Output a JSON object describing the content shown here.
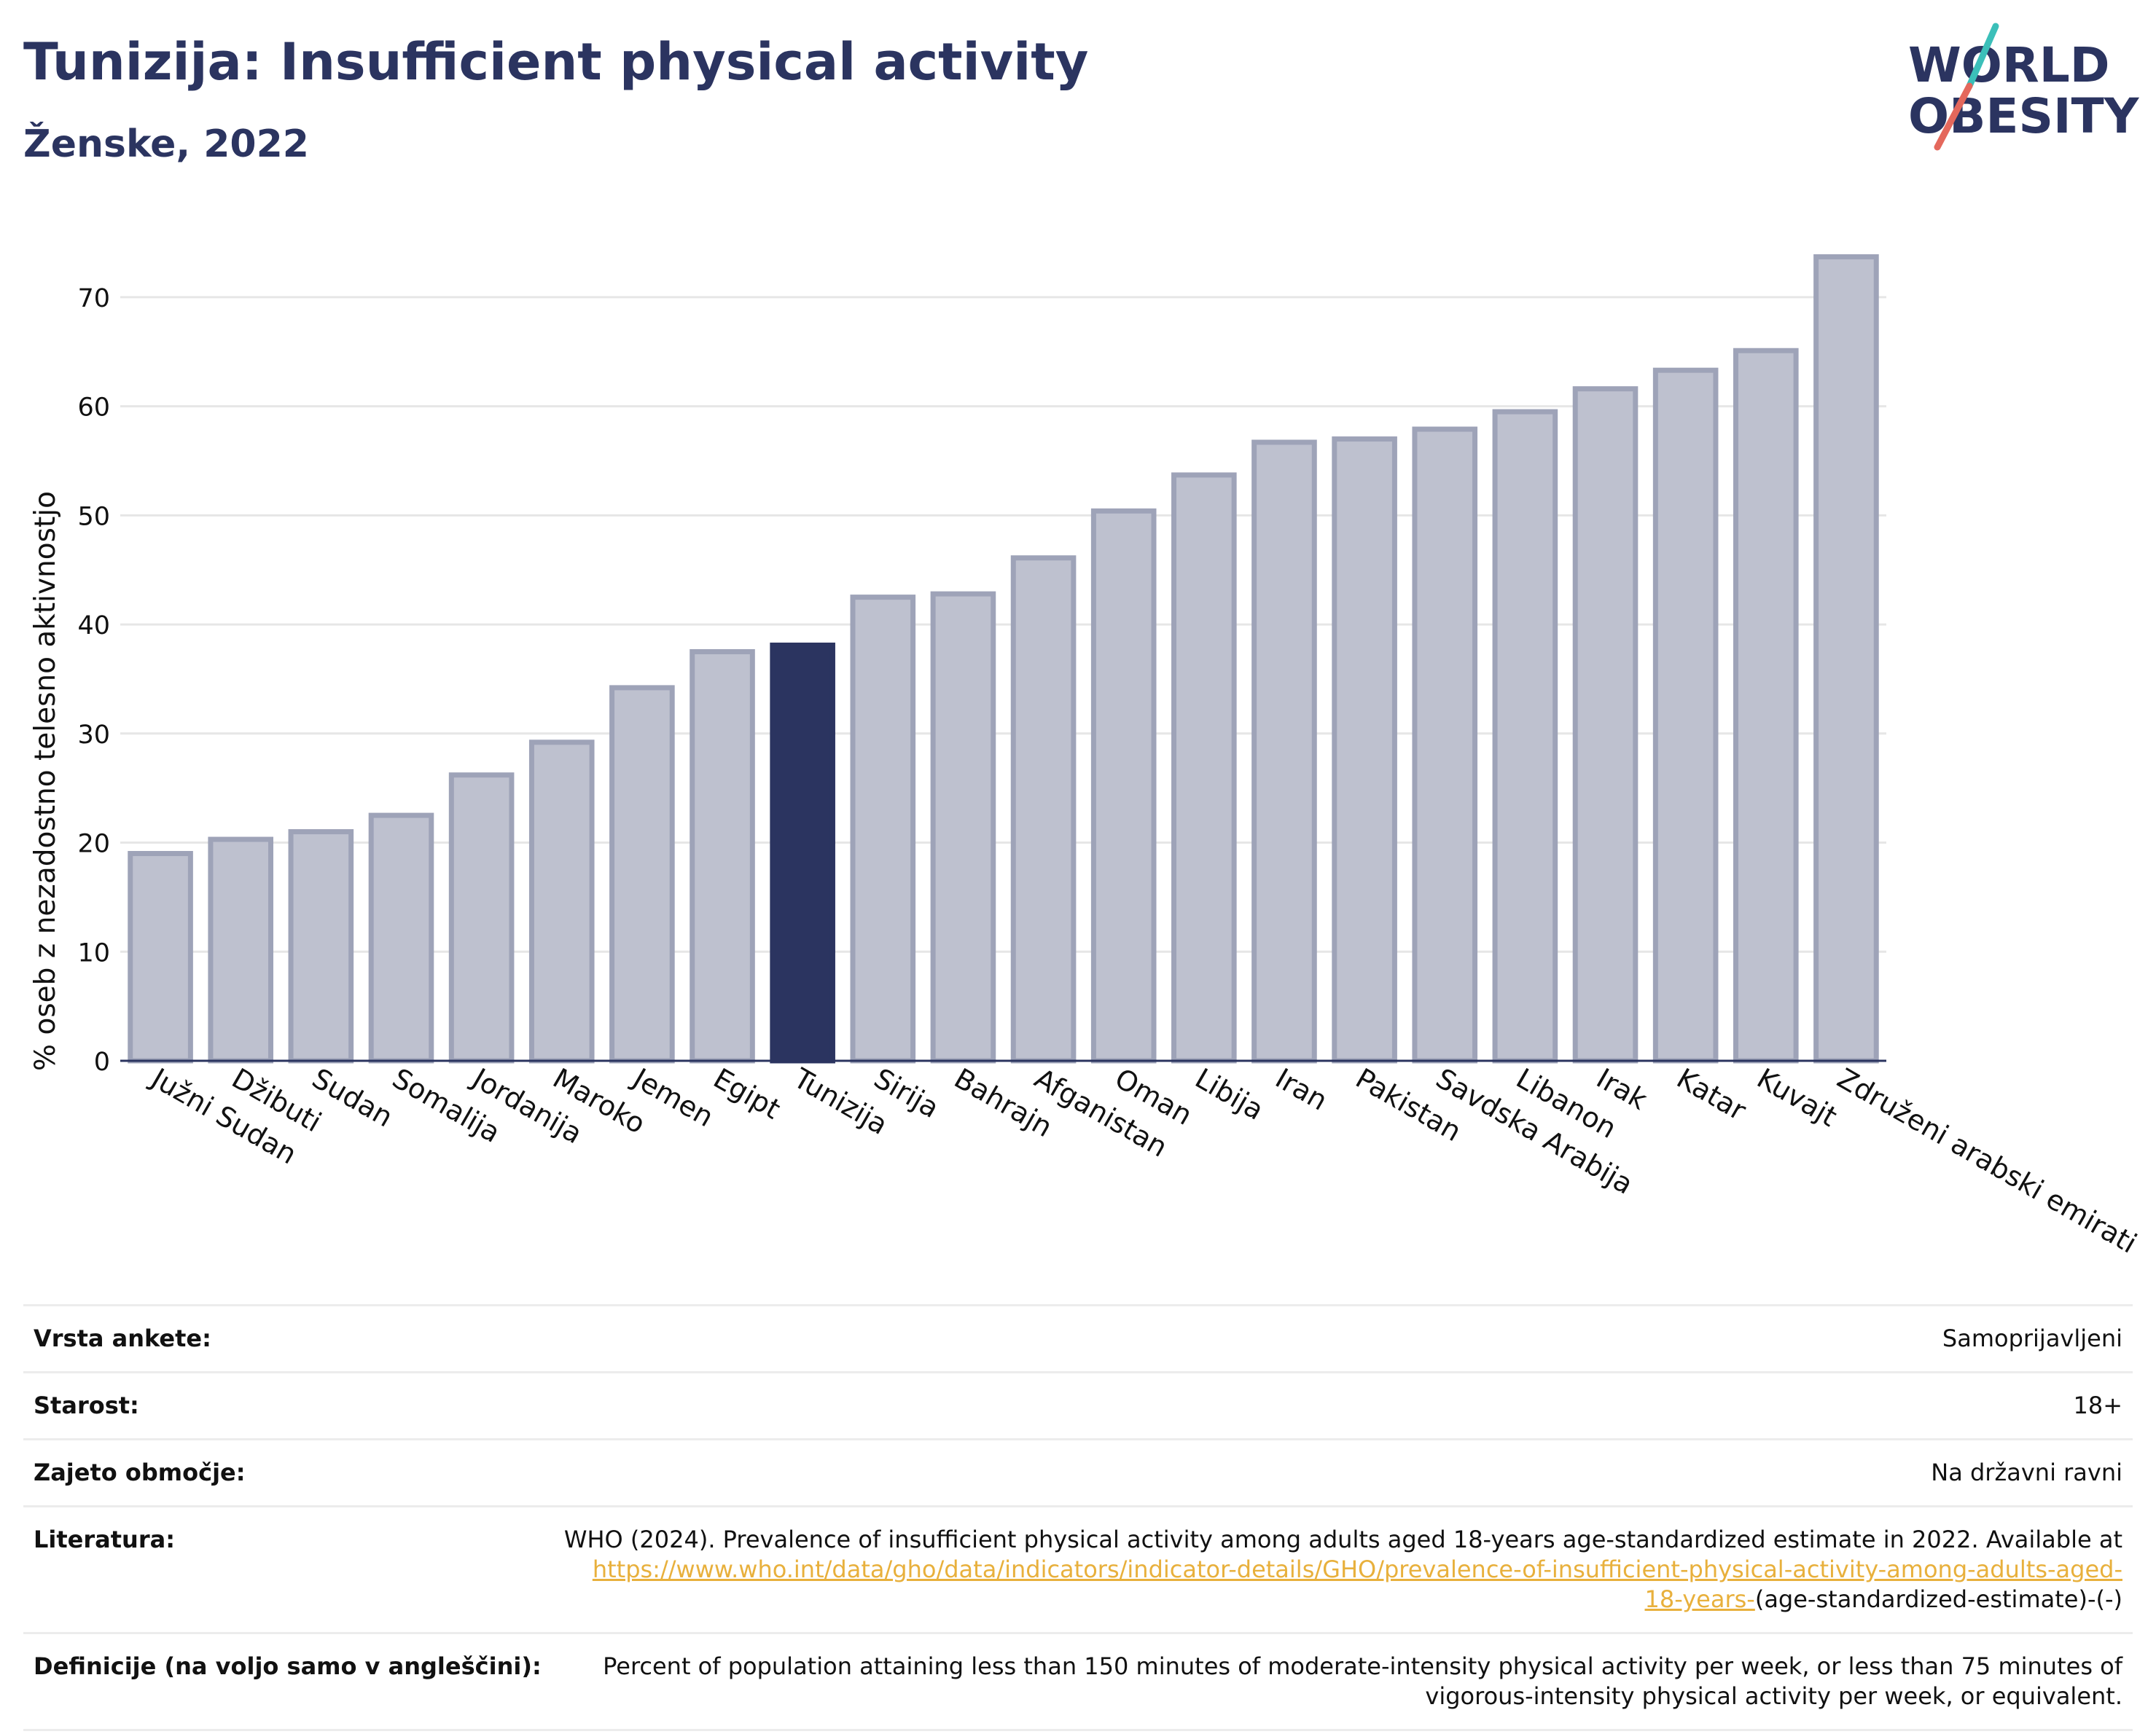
{
  "header": {
    "title": "Tunizija: Insufficient physical activity",
    "subtitle": "Ženske, 2022"
  },
  "logo": {
    "line1": "WORLD",
    "line2": "OBESITY"
  },
  "colors": {
    "bar": "#bec1cf",
    "bar_stroke": "#9ea3b8",
    "highlight": "#2b3460",
    "axis": "#2b3460",
    "grid": "#e6e6e6"
  },
  "chart_data": {
    "type": "bar",
    "title": "Tunizija: Insufficient physical activity",
    "subtitle": "Ženske, 2022",
    "xlabel": "",
    "ylabel": "% oseb z nezadostno telesno aktivnostjo",
    "ylim": [
      0,
      75
    ],
    "yticks": [
      0,
      10,
      20,
      30,
      40,
      50,
      60,
      70
    ],
    "grid": true,
    "highlight": "Tunizija",
    "categories": [
      "Južni Sudan",
      "Džibuti",
      "Sudan",
      "Somalija",
      "Jordanija",
      "Maroko",
      "Jemen",
      "Egipt",
      "Tunizija",
      "Sirija",
      "Bahrajn",
      "Afganistan",
      "Oman",
      "Libija",
      "Iran",
      "Pakistan",
      "Savdska Arabija",
      "Libanon",
      "Irak",
      "Katar",
      "Kuvajt",
      "Združeni arabski emirati"
    ],
    "values": [
      19.0,
      20.3,
      21.0,
      22.5,
      26.2,
      29.2,
      34.2,
      37.5,
      38.1,
      42.5,
      42.8,
      46.1,
      50.4,
      53.7,
      56.7,
      57.0,
      57.9,
      59.5,
      61.6,
      63.3,
      65.1,
      73.7
    ]
  },
  "meta": {
    "survey_label": "Vrsta ankete:",
    "survey_value": "Samoprijavljeni",
    "age_label": "Starost:",
    "age_value": "18+",
    "coverage_label": "Zajeto območje:",
    "coverage_value": "Na državni ravni",
    "ref_label": "Literatura:",
    "ref_text": "WHO (2024). Prevalence of insufficient physical activity among adults aged 18-years age-standardized estimate in 2022. Available at",
    "ref_link": "https://www.who.int/data/gho/data/indicators/indicator-details/GHO/prevalence-of-insufficient-physical-activity-among-adults-aged-18-years-",
    "ref_tail": "(age-standardized-estimate)-(-)",
    "def_label": "Definicije (na voljo samo v angleščini):",
    "def_text": "Percent of population attaining less than 150 minutes of moderate-intensity physical activity per week, or less than 75 minutes of vigorous-intensity physical activity per week, or equivalent."
  }
}
